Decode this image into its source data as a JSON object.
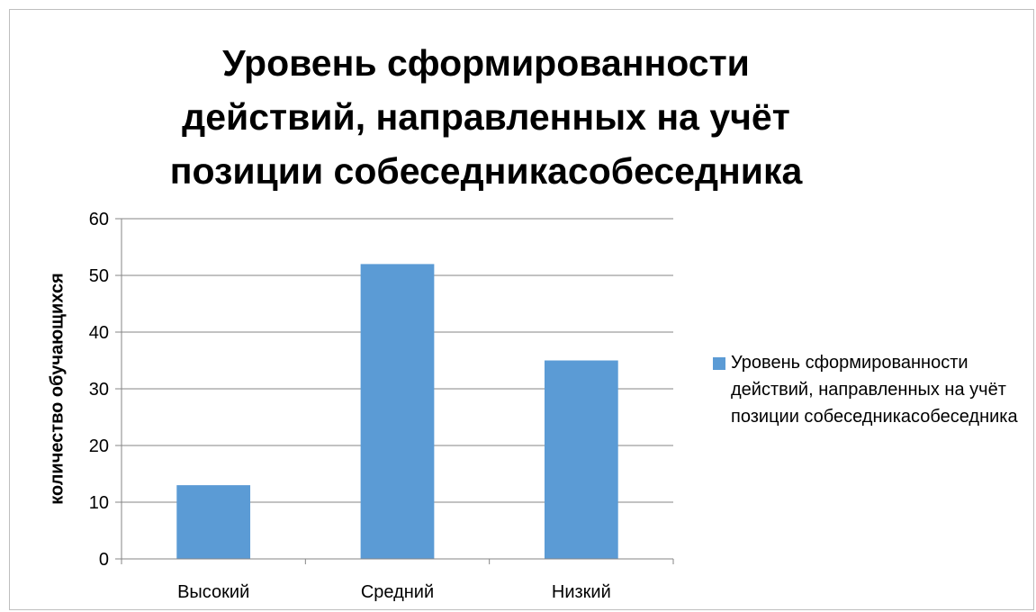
{
  "chart_data": {
    "type": "bar",
    "title": "Уровень сформированности действий, направленных на учёт позиции собеседникасобеседника",
    "xlabel": "",
    "ylabel": "количество обучающихся",
    "categories": [
      "Высокий",
      "Средний",
      "Низкий"
    ],
    "series": [
      {
        "name": "Уровень сформированности действий, направленных на учёт позиции собеседникасобеседника",
        "values": [
          13,
          52,
          35
        ],
        "color": "#5b9bd5"
      }
    ],
    "ylim": [
      0,
      60
    ],
    "yticks": [
      "0",
      "10",
      "20",
      "30",
      "40",
      "50",
      "60"
    ],
    "grid": true,
    "legend_position": "right"
  }
}
